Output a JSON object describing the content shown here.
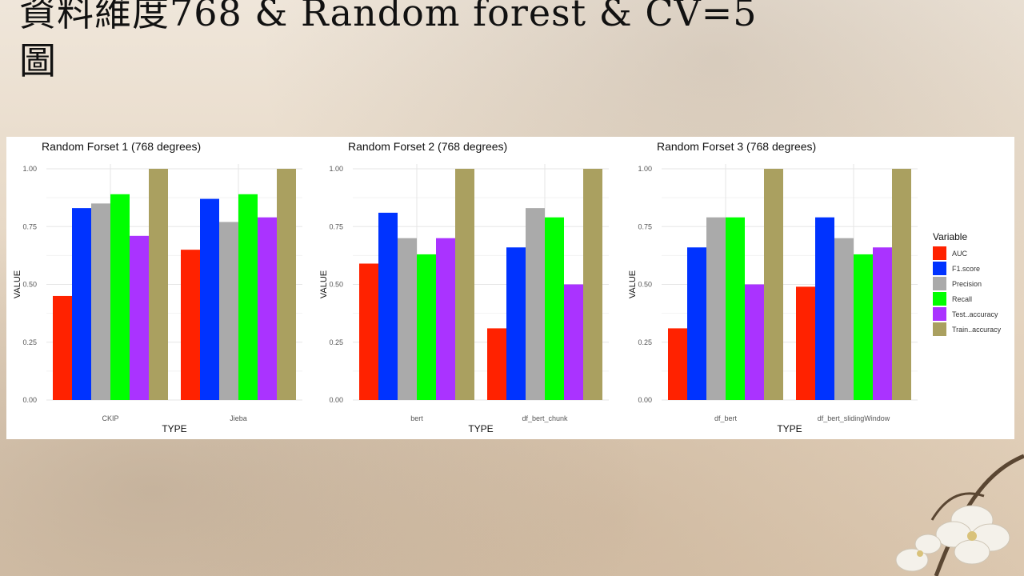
{
  "slide": {
    "title": "資料維度768 & Random forest & CV=5\n圖"
  },
  "colors": {
    "AUC": "#ff2200",
    "F1.score": "#0033ff",
    "Precision": "#aaaaaa",
    "Recall": "#00ff00",
    "Test..accuracy": "#aa33ff",
    "Train..accuracy": "#aaa060"
  },
  "legend": {
    "title": "Variable",
    "entries": [
      "AUC",
      "F1.score",
      "Precision",
      "Recall",
      "Test..accuracy",
      "Train..accuracy"
    ]
  },
  "chart_data": [
    {
      "type": "bar",
      "title": "Random Forset 1 (768 degrees)",
      "xlabel": "TYPE",
      "ylabel": "VALUE",
      "ylim": [
        0,
        1
      ],
      "yticks": [
        "0.00",
        "0.25",
        "0.50",
        "0.75",
        "1.00"
      ],
      "grid": true,
      "categories": [
        "CKIP",
        "Jieba"
      ],
      "series": [
        {
          "name": "AUC",
          "values": [
            0.45,
            0.65
          ]
        },
        {
          "name": "F1.score",
          "values": [
            0.83,
            0.87
          ]
        },
        {
          "name": "Precision",
          "values": [
            0.85,
            0.77
          ]
        },
        {
          "name": "Recall",
          "values": [
            0.89,
            0.89
          ]
        },
        {
          "name": "Test..accuracy",
          "values": [
            0.71,
            0.79
          ]
        },
        {
          "name": "Train..accuracy",
          "values": [
            1.0,
            1.0
          ]
        }
      ]
    },
    {
      "type": "bar",
      "title": "Random Forset 2 (768 degrees)",
      "xlabel": "TYPE",
      "ylabel": "VALUE",
      "ylim": [
        0,
        1
      ],
      "yticks": [
        "0.00",
        "0.25",
        "0.50",
        "0.75",
        "1.00"
      ],
      "grid": true,
      "categories": [
        "bert",
        "df_bert_chunk"
      ],
      "series": [
        {
          "name": "AUC",
          "values": [
            0.59,
            0.31
          ]
        },
        {
          "name": "F1.score",
          "values": [
            0.81,
            0.66
          ]
        },
        {
          "name": "Precision",
          "values": [
            0.7,
            0.83
          ]
        },
        {
          "name": "Recall",
          "values": [
            0.63,
            0.79
          ]
        },
        {
          "name": "Test..accuracy",
          "values": [
            0.7,
            0.5
          ]
        },
        {
          "name": "Train..accuracy",
          "values": [
            1.0,
            1.0
          ]
        }
      ]
    },
    {
      "type": "bar",
      "title": "Random Forset 3 (768 degrees)",
      "xlabel": "TYPE",
      "ylabel": "VALUE",
      "ylim": [
        0,
        1
      ],
      "yticks": [
        "0.00",
        "0.25",
        "0.50",
        "0.75",
        "1.00"
      ],
      "grid": true,
      "legend": "right",
      "categories": [
        "df_bert",
        "df_bert_slidingWindow"
      ],
      "series": [
        {
          "name": "AUC",
          "values": [
            0.31,
            0.49
          ]
        },
        {
          "name": "F1.score",
          "values": [
            0.66,
            0.79
          ]
        },
        {
          "name": "Precision",
          "values": [
            0.79,
            0.7
          ]
        },
        {
          "name": "Recall",
          "values": [
            0.79,
            0.63
          ]
        },
        {
          "name": "Test..accuracy",
          "values": [
            0.5,
            0.66
          ]
        },
        {
          "name": "Train..accuracy",
          "values": [
            1.0,
            1.0
          ]
        }
      ]
    }
  ]
}
